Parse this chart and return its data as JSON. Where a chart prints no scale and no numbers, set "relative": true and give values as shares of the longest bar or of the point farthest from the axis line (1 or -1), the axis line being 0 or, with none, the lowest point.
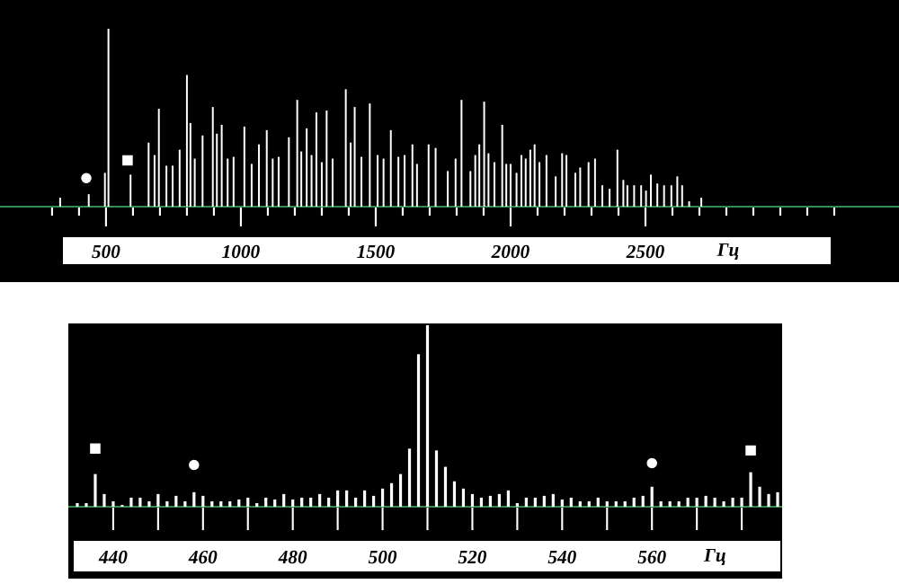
{
  "chart_data": [
    {
      "type": "bar",
      "relative": true,
      "xlabel": "Гц",
      "xlim": [
        107,
        3440
      ],
      "xticks": [
        {
          "value": 300,
          "label": null
        },
        {
          "value": 400,
          "label": null
        },
        500,
        {
          "value": 600,
          "label": null
        },
        {
          "value": 700,
          "label": null
        },
        {
          "value": 800,
          "label": null
        },
        {
          "value": 900,
          "label": null
        },
        1000,
        {
          "value": 1100,
          "label": null
        },
        {
          "value": 1200,
          "label": null
        },
        {
          "value": 1300,
          "label": null
        },
        {
          "value": 1400,
          "label": null
        },
        1500,
        {
          "value": 1600,
          "label": null
        },
        {
          "value": 1700,
          "label": null
        },
        {
          "value": 1800,
          "label": null
        },
        {
          "value": 1900,
          "label": null
        },
        2000,
        {
          "value": 2100,
          "label": null
        },
        {
          "value": 2200,
          "label": null
        },
        {
          "value": 2300,
          "label": null
        },
        {
          "value": 2400,
          "label": null
        },
        2500,
        {
          "value": 2600,
          "label": null
        },
        {
          "value": 2700,
          "label": null
        },
        {
          "value": 2800,
          "label": null
        },
        {
          "value": 2900,
          "label": null
        },
        {
          "value": 3000,
          "label": null
        },
        {
          "value": 3100,
          "label": null
        },
        {
          "value": 3200,
          "label": null
        }
      ],
      "series": [
        {
          "color": "#ffffff",
          "x": [
            330,
            436,
            496,
            509,
            591,
            658,
            680,
            696,
            724,
            747,
            773,
            800,
            813,
            829,
            858,
            896,
            911,
            929,
            951,
            973,
            1013,
            1040,
            1067,
            1096,
            1118,
            1140,
            1178,
            1209,
            1224,
            1244,
            1262,
            1280,
            1300,
            1318,
            1340,
            1389,
            1407,
            1422,
            1447,
            1478,
            1507,
            1529,
            1556,
            1584,
            1607,
            1636,
            1653,
            1696,
            1722,
            1767,
            1796,
            1818,
            1851,
            1869,
            1884,
            1902,
            1918,
            1940,
            1969,
            1984,
            2000,
            2022,
            2040,
            2056,
            2073,
            2089,
            2107,
            2133,
            2167,
            2191,
            2207,
            2240,
            2258,
            2289,
            2313,
            2340,
            2367,
            2396,
            2418,
            2433,
            2458,
            2484,
            2502,
            2520,
            2544,
            2569,
            2596,
            2618,
            2636,
            2662,
            2707
          ],
          "values": [
            0.05,
            0.07,
            0.19,
            1,
            0.18,
            0.36,
            0.29,
            0.55,
            0.23,
            0.23,
            0.32,
            0.74,
            0.47,
            0.27,
            0.4,
            0.56,
            0.41,
            0.46,
            0.27,
            0.28,
            0.45,
            0.24,
            0.35,
            0.43,
            0.27,
            0.28,
            0.39,
            0.6,
            0.31,
            0.44,
            0.29,
            0.53,
            0.25,
            0.54,
            0.27,
            0.66,
            0.36,
            0.56,
            0.28,
            0.58,
            0.29,
            0.27,
            0.43,
            0.28,
            0.29,
            0.35,
            0.24,
            0.35,
            0.33,
            0.2,
            0.27,
            0.6,
            0.2,
            0.29,
            0.35,
            0.59,
            0.3,
            0.25,
            0.46,
            0.24,
            0.24,
            0.19,
            0.29,
            0.27,
            0.32,
            0.35,
            0.25,
            0.29,
            0.17,
            0.3,
            0.29,
            0.19,
            0.22,
            0.25,
            0.27,
            0.12,
            0.1,
            0.32,
            0.15,
            0.12,
            0.12,
            0.12,
            0.09,
            0.18,
            0.13,
            0.12,
            0.12,
            0.17,
            0.12,
            0.03,
            0.05
          ]
        },
        {
          "type": "scatter",
          "marker": "circle",
          "color": "#ffffff",
          "x": [
            427
          ],
          "values": [
            0.16
          ]
        },
        {
          "type": "scatter",
          "marker": "square",
          "color": "#ffffff",
          "x": [
            580
          ],
          "values": [
            0.26
          ]
        }
      ]
    },
    {
      "type": "bar",
      "relative": true,
      "xlabel": "Гц",
      "xlim": [
        430,
        589
      ],
      "xticks": [
        440,
        {
          "value": 450,
          "label": null
        },
        460,
        {
          "value": 470,
          "label": null
        },
        480,
        {
          "value": 490,
          "label": null
        },
        500,
        {
          "value": 510,
          "label": null
        },
        520,
        {
          "value": 530,
          "label": null
        },
        540,
        {
          "value": 550,
          "label": null
        },
        560,
        {
          "value": 570,
          "label": null
        },
        {
          "value": 580,
          "label": null
        }
      ],
      "series": [
        {
          "color": "#ffffff",
          "x": [
            432,
            434,
            436,
            438,
            440,
            442,
            444,
            446,
            448,
            450,
            452,
            454,
            456,
            458,
            460,
            462,
            464,
            466,
            468,
            470,
            472,
            474,
            476,
            478,
            480,
            482,
            484,
            486,
            488,
            490,
            492,
            494,
            496,
            498,
            500,
            502,
            504,
            506,
            508,
            510,
            512,
            514,
            516,
            518,
            520,
            522,
            524,
            526,
            528,
            530,
            532,
            534,
            536,
            538,
            540,
            542,
            544,
            546,
            548,
            550,
            552,
            554,
            556,
            558,
            560,
            562,
            564,
            566,
            568,
            570,
            572,
            574,
            576,
            578,
            580,
            582,
            584,
            586,
            588
          ],
          "values": [
            0.02,
            0.02,
            0.18,
            0.07,
            0.03,
            0.01,
            0.05,
            0.05,
            0.03,
            0.07,
            0.03,
            0.06,
            0.03,
            0.08,
            0.06,
            0.03,
            0.03,
            0.03,
            0.04,
            0.05,
            0.02,
            0.05,
            0.04,
            0.07,
            0.04,
            0.05,
            0.05,
            0.07,
            0.05,
            0.09,
            0.09,
            0.05,
            0.09,
            0.06,
            0.1,
            0.13,
            0.18,
            0.32,
            0.84,
            1,
            0.31,
            0.22,
            0.14,
            0.1,
            0.07,
            0.05,
            0.06,
            0.07,
            0.09,
            0.02,
            0.05,
            0.05,
            0.06,
            0.07,
            0.04,
            0.05,
            0.03,
            0.03,
            0.05,
            0.03,
            0.03,
            0.03,
            0.05,
            0.06,
            0.11,
            0.03,
            0.03,
            0.03,
            0.05,
            0.05,
            0.06,
            0.05,
            0.03,
            0.05,
            0.05,
            0.19,
            0.11,
            0.07,
            0.08
          ]
        },
        {
          "type": "scatter",
          "marker": "square",
          "color": "#ffffff",
          "x": [
            436,
            582
          ],
          "values": [
            0.32,
            0.31
          ]
        },
        {
          "type": "scatter",
          "marker": "circle",
          "color": "#ffffff",
          "x": [
            458,
            560
          ],
          "values": [
            0.23,
            0.24
          ]
        }
      ]
    }
  ]
}
